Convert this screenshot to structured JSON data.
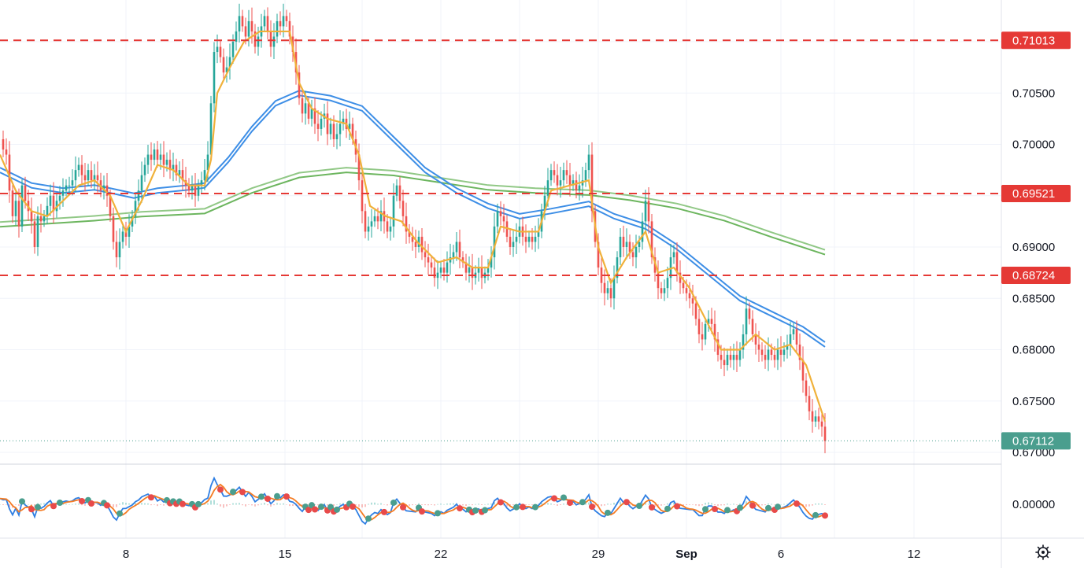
{
  "chart_data": {
    "type": "candlestick",
    "price_axis": {
      "ticks": [
        "0.70500",
        "0.70000",
        "0.69000",
        "0.68500",
        "0.68000",
        "0.67500",
        "0.67000"
      ],
      "tick_values": [
        0.705,
        0.7,
        0.69,
        0.685,
        0.68,
        0.675,
        0.67
      ],
      "ylim": [
        0.67,
        0.7138
      ]
    },
    "horizontal_levels": [
      {
        "value": 0.71013,
        "label": "0.71013",
        "color": "#e53935",
        "style": "dashed"
      },
      {
        "value": 0.69521,
        "label": "0.69521",
        "color": "#e53935",
        "style": "dashed"
      },
      {
        "value": 0.68724,
        "label": "0.68724",
        "color": "#e53935",
        "style": "dashed"
      }
    ],
    "last_price": {
      "value": 0.67112,
      "label": "0.67112",
      "color": "#4a9e8e"
    },
    "x_axis": {
      "ticks": [
        "8",
        "15",
        "22",
        "29",
        "Sep",
        "6",
        "12"
      ],
      "tick_bold": [
        false,
        false,
        false,
        false,
        true,
        false,
        false
      ]
    },
    "oscillator": {
      "ticks": [
        "0.00000"
      ],
      "tick_values": [
        0.0
      ]
    },
    "colors": {
      "up": "#26a69a",
      "down": "#ef5350",
      "ma_fast": "#f0b13a",
      "ma_mid": "#3d8ee6",
      "ma_slow": "#6cb55e",
      "osc_fast": "#2f7fe3",
      "osc_slow": "#f57c23"
    },
    "series_close": [
      [
        0,
        0.7005
      ],
      [
        4,
        0.6995
      ],
      [
        8,
        0.699
      ],
      [
        12,
        0.6955
      ],
      [
        16,
        0.693
      ],
      [
        20,
        0.6945
      ],
      [
        24,
        0.692
      ],
      [
        28,
        0.696
      ],
      [
        32,
        0.6945
      ],
      [
        36,
        0.6935
      ],
      [
        40,
        0.6925
      ],
      [
        44,
        0.69
      ],
      [
        48,
        0.693
      ],
      [
        52,
        0.6925
      ],
      [
        56,
        0.693
      ],
      [
        60,
        0.694
      ],
      [
        64,
        0.695
      ],
      [
        68,
        0.6935
      ],
      [
        72,
        0.6945
      ],
      [
        76,
        0.695
      ],
      [
        80,
        0.6955
      ],
      [
        84,
        0.696
      ],
      [
        88,
        0.696
      ],
      [
        92,
        0.6965
      ],
      [
        96,
        0.6975
      ],
      [
        100,
        0.698
      ],
      [
        104,
        0.697
      ],
      [
        108,
        0.6965
      ],
      [
        112,
        0.6975
      ],
      [
        116,
        0.6965
      ],
      [
        120,
        0.697
      ],
      [
        124,
        0.6965
      ],
      [
        128,
        0.6955
      ],
      [
        132,
        0.696
      ],
      [
        136,
        0.695
      ],
      [
        140,
        0.693
      ],
      [
        144,
        0.6905
      ],
      [
        148,
        0.689
      ],
      [
        152,
        0.6905
      ],
      [
        156,
        0.6915
      ],
      [
        160,
        0.691
      ],
      [
        164,
        0.692
      ],
      [
        168,
        0.693
      ],
      [
        172,
        0.6945
      ],
      [
        176,
        0.6955
      ],
      [
        180,
        0.697
      ],
      [
        184,
        0.698
      ],
      [
        188,
        0.699
      ],
      [
        192,
        0.6985
      ],
      [
        196,
        0.6995
      ],
      [
        200,
        0.6985
      ],
      [
        204,
        0.699
      ],
      [
        208,
        0.698
      ],
      [
        212,
        0.6985
      ],
      [
        216,
        0.6975
      ],
      [
        220,
        0.698
      ],
      [
        224,
        0.697
      ],
      [
        228,
        0.6975
      ],
      [
        232,
        0.6965
      ],
      [
        236,
        0.696
      ],
      [
        240,
        0.6955
      ],
      [
        244,
        0.696
      ],
      [
        248,
        0.695
      ],
      [
        252,
        0.696
      ],
      [
        256,
        0.6965
      ],
      [
        260,
        0.6975
      ],
      [
        264,
        0.699
      ],
      [
        268,
        0.704
      ],
      [
        272,
        0.709
      ],
      [
        276,
        0.7095
      ],
      [
        280,
        0.7085
      ],
      [
        284,
        0.707
      ],
      [
        288,
        0.7075
      ],
      [
        292,
        0.7085
      ],
      [
        296,
        0.71
      ],
      [
        300,
        0.711
      ],
      [
        304,
        0.7125
      ],
      [
        308,
        0.7115
      ],
      [
        312,
        0.7105
      ],
      [
        316,
        0.712
      ],
      [
        320,
        0.711
      ],
      [
        324,
        0.7095
      ],
      [
        328,
        0.7105
      ],
      [
        332,
        0.7115
      ],
      [
        336,
        0.7125
      ],
      [
        340,
        0.711
      ],
      [
        344,
        0.7095
      ],
      [
        348,
        0.7105
      ],
      [
        352,
        0.712
      ],
      [
        356,
        0.7115
      ],
      [
        360,
        0.7125
      ],
      [
        364,
        0.712
      ],
      [
        368,
        0.7105
      ],
      [
        372,
        0.709
      ],
      [
        376,
        0.707
      ],
      [
        380,
        0.7045
      ],
      [
        384,
        0.703
      ],
      [
        388,
        0.704
      ],
      [
        392,
        0.7025
      ],
      [
        396,
        0.7035
      ],
      [
        400,
        0.702
      ],
      [
        404,
        0.7015
      ],
      [
        408,
        0.7025
      ],
      [
        412,
        0.703
      ],
      [
        416,
        0.701
      ],
      [
        420,
        0.702
      ],
      [
        424,
        0.7005
      ],
      [
        428,
        0.701
      ],
      [
        432,
        0.702
      ],
      [
        436,
        0.7025
      ],
      [
        440,
        0.7015
      ],
      [
        444,
        0.702
      ],
      [
        448,
        0.7005
      ],
      [
        452,
        0.699
      ],
      [
        456,
        0.6965
      ],
      [
        460,
        0.6935
      ],
      [
        464,
        0.6915
      ],
      [
        468,
        0.692
      ],
      [
        472,
        0.6925
      ],
      [
        476,
        0.693
      ],
      [
        480,
        0.6925
      ],
      [
        484,
        0.6935
      ],
      [
        488,
        0.6925
      ],
      [
        492,
        0.6915
      ],
      [
        496,
        0.692
      ],
      [
        500,
        0.695
      ],
      [
        504,
        0.696
      ],
      [
        508,
        0.6945
      ],
      [
        512,
        0.693
      ],
      [
        516,
        0.6915
      ],
      [
        520,
        0.691
      ],
      [
        524,
        0.6905
      ],
      [
        528,
        0.69
      ],
      [
        532,
        0.691
      ],
      [
        536,
        0.6895
      ],
      [
        540,
        0.689
      ],
      [
        544,
        0.6885
      ],
      [
        548,
        0.688
      ],
      [
        552,
        0.687
      ],
      [
        556,
        0.6875
      ],
      [
        560,
        0.688
      ],
      [
        564,
        0.6875
      ],
      [
        568,
        0.6885
      ],
      [
        572,
        0.689
      ],
      [
        576,
        0.6895
      ],
      [
        580,
        0.6905
      ],
      [
        584,
        0.689
      ],
      [
        588,
        0.6885
      ],
      [
        592,
        0.6875
      ],
      [
        596,
        0.688
      ],
      [
        600,
        0.687
      ],
      [
        604,
        0.6875
      ],
      [
        608,
        0.688
      ],
      [
        612,
        0.687
      ],
      [
        616,
        0.6875
      ],
      [
        620,
        0.688
      ],
      [
        624,
        0.689
      ],
      [
        628,
        0.692
      ],
      [
        632,
        0.6935
      ],
      [
        636,
        0.693
      ],
      [
        640,
        0.6925
      ],
      [
        644,
        0.691
      ],
      [
        648,
        0.69
      ],
      [
        652,
        0.6905
      ],
      [
        656,
        0.691
      ],
      [
        660,
        0.692
      ],
      [
        664,
        0.691
      ],
      [
        668,
        0.6905
      ],
      [
        672,
        0.691
      ],
      [
        676,
        0.6905
      ],
      [
        680,
        0.691
      ],
      [
        684,
        0.6915
      ],
      [
        688,
        0.6935
      ],
      [
        692,
        0.695
      ],
      [
        696,
        0.6965
      ],
      [
        700,
        0.6975
      ],
      [
        704,
        0.697
      ],
      [
        708,
        0.696
      ],
      [
        712,
        0.6965
      ],
      [
        716,
        0.6975
      ],
      [
        720,
        0.697
      ],
      [
        724,
        0.696
      ],
      [
        728,
        0.6965
      ],
      [
        732,
        0.6955
      ],
      [
        736,
        0.696
      ],
      [
        740,
        0.6965
      ],
      [
        744,
        0.6975
      ],
      [
        748,
        0.699
      ],
      [
        752,
        0.6935
      ],
      [
        756,
        0.6905
      ],
      [
        760,
        0.688
      ],
      [
        764,
        0.6865
      ],
      [
        768,
        0.6855
      ],
      [
        772,
        0.686
      ],
      [
        776,
        0.685
      ],
      [
        780,
        0.687
      ],
      [
        784,
        0.689
      ],
      [
        788,
        0.691
      ],
      [
        792,
        0.69
      ],
      [
        796,
        0.6905
      ],
      [
        800,
        0.6895
      ],
      [
        804,
        0.689
      ],
      [
        808,
        0.69
      ],
      [
        812,
        0.6905
      ],
      [
        816,
        0.6925
      ],
      [
        820,
        0.6945
      ],
      [
        824,
        0.6925
      ],
      [
        828,
        0.689
      ],
      [
        832,
        0.6875
      ],
      [
        836,
        0.686
      ],
      [
        840,
        0.6855
      ],
      [
        844,
        0.686
      ],
      [
        848,
        0.687
      ],
      [
        852,
        0.689
      ],
      [
        856,
        0.6895
      ],
      [
        860,
        0.6875
      ],
      [
        864,
        0.6865
      ],
      [
        868,
        0.686
      ],
      [
        872,
        0.6855
      ],
      [
        876,
        0.685
      ],
      [
        880,
        0.6845
      ],
      [
        884,
        0.683
      ],
      [
        888,
        0.6815
      ],
      [
        892,
        0.681
      ],
      [
        896,
        0.6825
      ],
      [
        900,
        0.683
      ],
      [
        904,
        0.6825
      ],
      [
        908,
        0.681
      ],
      [
        912,
        0.6795
      ],
      [
        916,
        0.679
      ],
      [
        920,
        0.6785
      ],
      [
        924,
        0.6795
      ],
      [
        928,
        0.679
      ],
      [
        932,
        0.6795
      ],
      [
        936,
        0.679
      ],
      [
        940,
        0.68
      ],
      [
        944,
        0.6815
      ],
      [
        948,
        0.684
      ],
      [
        952,
        0.683
      ],
      [
        956,
        0.6815
      ],
      [
        960,
        0.6805
      ],
      [
        964,
        0.68
      ],
      [
        968,
        0.6795
      ],
      [
        972,
        0.679
      ],
      [
        976,
        0.68
      ],
      [
        980,
        0.6795
      ],
      [
        984,
        0.679
      ],
      [
        988,
        0.68
      ],
      [
        992,
        0.6795
      ],
      [
        996,
        0.68
      ],
      [
        1000,
        0.6805
      ],
      [
        1004,
        0.6815
      ],
      [
        1008,
        0.682
      ],
      [
        1012,
        0.6805
      ],
      [
        1016,
        0.679
      ],
      [
        1020,
        0.677
      ],
      [
        1024,
        0.6755
      ],
      [
        1028,
        0.674
      ],
      [
        1032,
        0.673
      ],
      [
        1036,
        0.6735
      ],
      [
        1040,
        0.673
      ],
      [
        1044,
        0.6725
      ],
      [
        1048,
        0.6711
      ]
    ],
    "ma_fast": [
      [
        0,
        0.699
      ],
      [
        20,
        0.6955
      ],
      [
        40,
        0.6935
      ],
      [
        60,
        0.693
      ],
      [
        80,
        0.6945
      ],
      [
        100,
        0.696
      ],
      [
        120,
        0.6965
      ],
      [
        140,
        0.695
      ],
      [
        160,
        0.6915
      ],
      [
        180,
        0.6945
      ],
      [
        200,
        0.698
      ],
      [
        220,
        0.6975
      ],
      [
        240,
        0.696
      ],
      [
        260,
        0.696
      ],
      [
        268,
        0.6985
      ],
      [
        276,
        0.705
      ],
      [
        292,
        0.7075
      ],
      [
        310,
        0.71
      ],
      [
        330,
        0.711
      ],
      [
        350,
        0.711
      ],
      [
        368,
        0.711
      ],
      [
        380,
        0.706
      ],
      [
        396,
        0.7035
      ],
      [
        416,
        0.7025
      ],
      [
        440,
        0.702
      ],
      [
        456,
        0.699
      ],
      [
        470,
        0.694
      ],
      [
        490,
        0.693
      ],
      [
        510,
        0.6925
      ],
      [
        530,
        0.6905
      ],
      [
        556,
        0.6885
      ],
      [
        580,
        0.689
      ],
      [
        600,
        0.688
      ],
      [
        620,
        0.688
      ],
      [
        636,
        0.692
      ],
      [
        660,
        0.6915
      ],
      [
        684,
        0.6915
      ],
      [
        700,
        0.6955
      ],
      [
        724,
        0.696
      ],
      [
        748,
        0.6965
      ],
      [
        760,
        0.69
      ],
      [
        776,
        0.6865
      ],
      [
        796,
        0.689
      ],
      [
        820,
        0.6915
      ],
      [
        836,
        0.6875
      ],
      [
        856,
        0.688
      ],
      [
        876,
        0.686
      ],
      [
        896,
        0.683
      ],
      [
        916,
        0.68
      ],
      [
        940,
        0.68
      ],
      [
        960,
        0.6815
      ],
      [
        984,
        0.68
      ],
      [
        1004,
        0.6805
      ],
      [
        1024,
        0.6785
      ],
      [
        1048,
        0.673
      ]
    ],
    "ma_mid": [
      [
        0,
        0.6975
      ],
      [
        40,
        0.696
      ],
      [
        80,
        0.6955
      ],
      [
        120,
        0.6958
      ],
      [
        140,
        0.6955
      ],
      [
        170,
        0.695
      ],
      [
        200,
        0.6955
      ],
      [
        240,
        0.6958
      ],
      [
        260,
        0.696
      ],
      [
        290,
        0.6985
      ],
      [
        320,
        0.7015
      ],
      [
        350,
        0.704
      ],
      [
        380,
        0.705
      ],
      [
        420,
        0.7045
      ],
      [
        460,
        0.7035
      ],
      [
        500,
        0.7005
      ],
      [
        540,
        0.6975
      ],
      [
        580,
        0.6955
      ],
      [
        620,
        0.694
      ],
      [
        660,
        0.693
      ],
      [
        700,
        0.6935
      ],
      [
        748,
        0.6942
      ],
      [
        780,
        0.693
      ],
      [
        820,
        0.692
      ],
      [
        860,
        0.69
      ],
      [
        900,
        0.6875
      ],
      [
        940,
        0.685
      ],
      [
        980,
        0.6835
      ],
      [
        1020,
        0.682
      ],
      [
        1048,
        0.6805
      ]
    ],
    "ma_slow": [
      [
        0,
        0.6922
      ],
      [
        60,
        0.6925
      ],
      [
        120,
        0.6928
      ],
      [
        180,
        0.6932
      ],
      [
        260,
        0.6935
      ],
      [
        320,
        0.6955
      ],
      [
        380,
        0.697
      ],
      [
        440,
        0.6975
      ],
      [
        500,
        0.6972
      ],
      [
        560,
        0.6965
      ],
      [
        620,
        0.6958
      ],
      [
        680,
        0.6955
      ],
      [
        748,
        0.6953
      ],
      [
        800,
        0.6948
      ],
      [
        860,
        0.694
      ],
      [
        920,
        0.6928
      ],
      [
        980,
        0.6912
      ],
      [
        1048,
        0.6895
      ]
    ]
  }
}
